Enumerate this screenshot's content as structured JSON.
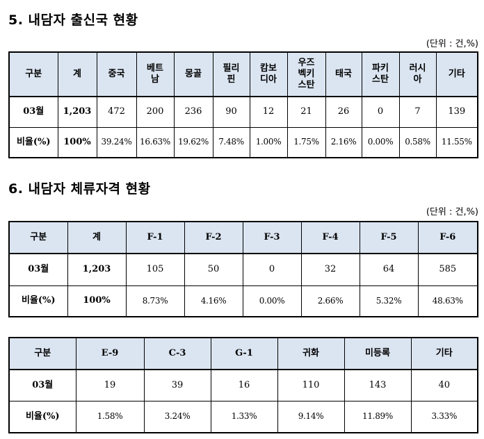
{
  "section5": {
    "title": "5. 내담자 출신국 현황",
    "unit": "(단위 : 건,%)",
    "headers": [
      "구분",
      "계",
      "중국",
      "베트\n남",
      "몽골",
      "필리\n핀",
      "캄보\n디아",
      "우즈\n벡키\n스탄",
      "태국",
      "파키\n스탄",
      "러시\n아",
      "기타"
    ],
    "count_row": [
      "03월",
      "1,203",
      "472",
      "200",
      "236",
      "90",
      "12",
      "21",
      "26",
      "0",
      "7",
      "139"
    ],
    "ratio_row": [
      "비율(%)",
      "100%",
      "39.24%",
      "16.63%",
      "19.62%",
      "7.48%",
      "1.00%",
      "1.75%",
      "2.16%",
      "0.00%",
      "0.58%",
      "11.55%"
    ]
  },
  "section6": {
    "title": "6. 내담자 체류자격 현황",
    "unit": "(단위 : 건,%)",
    "table1": {
      "headers": [
        "구분",
        "계",
        "F-1",
        "F-2",
        "F-3",
        "F-4",
        "F-5",
        "F-6"
      ],
      "count_row": [
        "03월",
        "1,203",
        "105",
        "50",
        "0",
        "32",
        "64",
        "585"
      ],
      "ratio_row": [
        "비율(%)",
        "100%",
        "8.73%",
        "4.16%",
        "0.00%",
        "2.66%",
        "5.32%",
        "48.63%"
      ]
    },
    "table2": {
      "headers": [
        "구분",
        "E-9",
        "C-3",
        "G-1",
        "귀화",
        "미등록",
        "기타"
      ],
      "count_row": [
        "03월",
        "19",
        "39",
        "16",
        "110",
        "143",
        "40"
      ],
      "ratio_row": [
        "비율(%)",
        "1.58%",
        "3.24%",
        "1.33%",
        "9.14%",
        "11.89%",
        "3.33%"
      ]
    }
  }
}
